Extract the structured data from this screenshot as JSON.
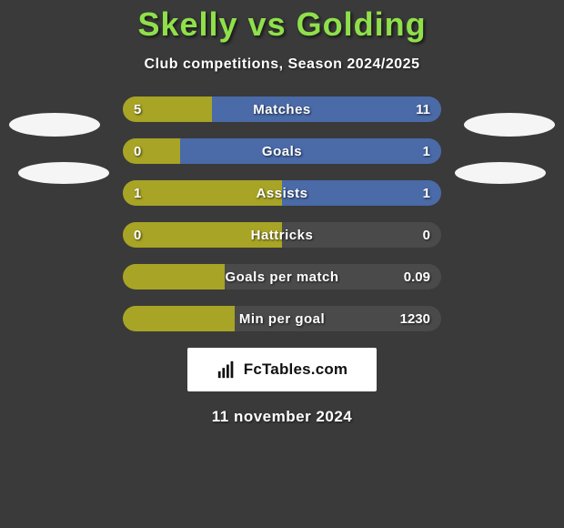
{
  "title_color": "#8fe04a",
  "players": {
    "left": "Skelly",
    "right": "Golding"
  },
  "subtitle": "Club competitions, Season 2024/2025",
  "colors": {
    "left": "#a8a426",
    "right": "#4a6aa8",
    "bar_bg": "#4a4a4a",
    "page_bg": "#3a3a3a",
    "oval": "#f5f5f5"
  },
  "rows": [
    {
      "label": "Matches",
      "left": "5",
      "right": "11",
      "left_pct": 28,
      "right_pct": 72
    },
    {
      "label": "Goals",
      "left": "0",
      "right": "1",
      "left_pct": 18,
      "right_pct": 82
    },
    {
      "label": "Assists",
      "left": "1",
      "right": "1",
      "left_pct": 50,
      "right_pct": 50
    },
    {
      "label": "Hattricks",
      "left": "0",
      "right": "0",
      "left_pct": 50,
      "right_pct": 0
    },
    {
      "label": "Goals per match",
      "left": "",
      "right": "0.09",
      "left_pct": 32,
      "right_pct": 0
    },
    {
      "label": "Min per goal",
      "left": "",
      "right": "1230",
      "left_pct": 35,
      "right_pct": 0
    }
  ],
  "branding": "FcTables.com",
  "date": "11 november 2024"
}
